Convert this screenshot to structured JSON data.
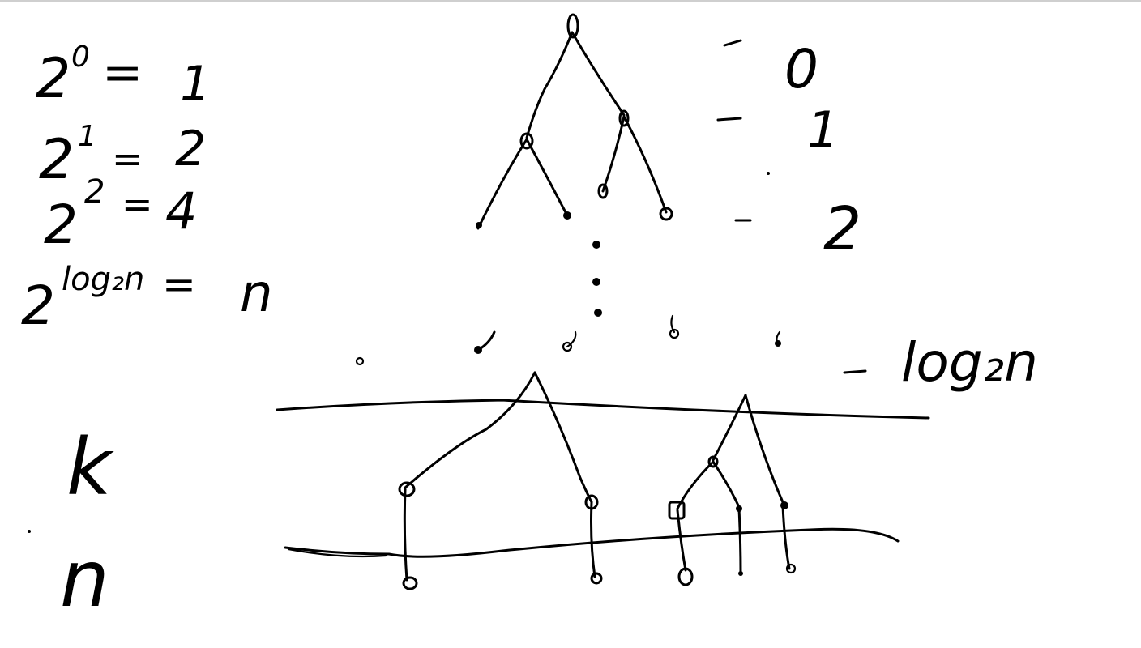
{
  "powers": {
    "p0": {
      "base": "2",
      "exp": "0",
      "eq": "=",
      "val": "1"
    },
    "p1": {
      "base": "2",
      "exp": "1",
      "eq": "=",
      "val": "2"
    },
    "p2": {
      "base": "2",
      "exp": "2",
      "eq": "=",
      "val": "4"
    },
    "plog": {
      "base": "2",
      "exp": "log₂n",
      "eq": "=",
      "val": "n"
    }
  },
  "levels": {
    "l0": "0",
    "l1": "1",
    "l2": "2",
    "llog": "log₂n"
  },
  "side_labels": {
    "k": "k",
    "n": "n"
  }
}
